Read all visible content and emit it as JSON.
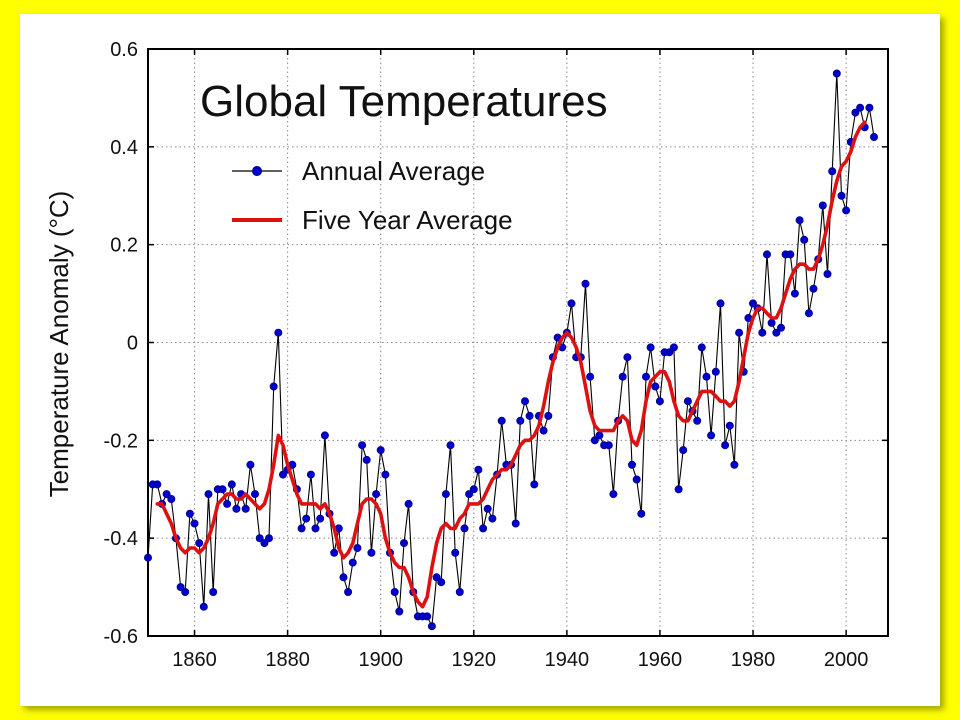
{
  "chart_data": {
    "type": "line",
    "title": "Global Temperatures",
    "xlabel": "",
    "ylabel": "Temperature Anomaly (°C)",
    "xlim": [
      1850,
      2009
    ],
    "ylim": [
      -0.6,
      0.6
    ],
    "x_ticks": [
      1860,
      1880,
      1900,
      1920,
      1940,
      1960,
      1980,
      2000
    ],
    "y_ticks": [
      "0.6",
      "0.4",
      "0.2",
      "0",
      "-0.2",
      "-0.4",
      "-0.6"
    ],
    "grid": true,
    "legend_position": "top-left",
    "series": [
      {
        "name": "Annual Average",
        "color": "#0000cc",
        "line_color": "#000000",
        "marker": "circle",
        "x": [
          1850,
          1851,
          1852,
          1853,
          1854,
          1855,
          1856,
          1857,
          1858,
          1859,
          1860,
          1861,
          1862,
          1863,
          1864,
          1865,
          1866,
          1867,
          1868,
          1869,
          1870,
          1871,
          1872,
          1873,
          1874,
          1875,
          1876,
          1877,
          1878,
          1879,
          1880,
          1881,
          1882,
          1883,
          1884,
          1885,
          1886,
          1887,
          1888,
          1889,
          1890,
          1891,
          1892,
          1893,
          1894,
          1895,
          1896,
          1897,
          1898,
          1899,
          1900,
          1901,
          1902,
          1903,
          1904,
          1905,
          1906,
          1907,
          1908,
          1909,
          1910,
          1911,
          1912,
          1913,
          1914,
          1915,
          1916,
          1917,
          1918,
          1919,
          1920,
          1921,
          1922,
          1923,
          1924,
          1925,
          1926,
          1927,
          1928,
          1929,
          1930,
          1931,
          1932,
          1933,
          1934,
          1935,
          1936,
          1937,
          1938,
          1939,
          1940,
          1941,
          1942,
          1943,
          1944,
          1945,
          1946,
          1947,
          1948,
          1949,
          1950,
          1951,
          1952,
          1953,
          1954,
          1955,
          1956,
          1957,
          1958,
          1959,
          1960,
          1961,
          1962,
          1963,
          1964,
          1965,
          1966,
          1967,
          1968,
          1969,
          1970,
          1971,
          1972,
          1973,
          1974,
          1975,
          1976,
          1977,
          1978,
          1979,
          1980,
          1981,
          1982,
          1983,
          1984,
          1985,
          1986,
          1987,
          1988,
          1989,
          1990,
          1991,
          1992,
          1993,
          1994,
          1995,
          1996,
          1997,
          1998,
          1999,
          2000,
          2001,
          2002,
          2003,
          2004,
          2005,
          2006
        ],
        "values": [
          -0.44,
          -0.29,
          -0.29,
          -0.33,
          -0.31,
          -0.32,
          -0.4,
          -0.5,
          -0.51,
          -0.35,
          -0.37,
          -0.41,
          -0.54,
          -0.31,
          -0.51,
          -0.3,
          -0.3,
          -0.33,
          -0.29,
          -0.34,
          -0.31,
          -0.34,
          -0.25,
          -0.31,
          -0.4,
          -0.41,
          -0.4,
          -0.09,
          0.02,
          -0.27,
          -0.26,
          -0.25,
          -0.3,
          -0.38,
          -0.36,
          -0.27,
          -0.38,
          -0.36,
          -0.19,
          -0.35,
          -0.43,
          -0.38,
          -0.48,
          -0.51,
          -0.45,
          -0.42,
          -0.21,
          -0.24,
          -0.43,
          -0.31,
          -0.22,
          -0.27,
          -0.43,
          -0.51,
          -0.55,
          -0.41,
          -0.33,
          -0.51,
          -0.56,
          -0.56,
          -0.56,
          -0.58,
          -0.48,
          -0.49,
          -0.31,
          -0.21,
          -0.43,
          -0.51,
          -0.38,
          -0.31,
          -0.3,
          -0.26,
          -0.38,
          -0.34,
          -0.36,
          -0.27,
          -0.16,
          -0.25,
          -0.25,
          -0.37,
          -0.16,
          -0.12,
          -0.15,
          -0.29,
          -0.15,
          -0.18,
          -0.15,
          -0.03,
          0.01,
          -0.01,
          0.02,
          0.08,
          -0.03,
          -0.03,
          0.12,
          -0.07,
          -0.2,
          -0.19,
          -0.21,
          -0.21,
          -0.31,
          -0.16,
          -0.07,
          -0.03,
          -0.25,
          -0.28,
          -0.35,
          -0.07,
          -0.01,
          -0.09,
          -0.12,
          -0.02,
          -0.02,
          -0.01,
          -0.3,
          -0.22,
          -0.12,
          -0.14,
          -0.16,
          -0.01,
          -0.07,
          -0.19,
          -0.06,
          0.08,
          -0.21,
          -0.17,
          -0.25,
          0.02,
          -0.06,
          0.05,
          0.08,
          0.07,
          0.02,
          0.18,
          0.04,
          0.02,
          0.03,
          0.18,
          0.18,
          0.1,
          0.25,
          0.21,
          0.06,
          0.11,
          0.17,
          0.28,
          0.14,
          0.35,
          0.55,
          0.3,
          0.27,
          0.41,
          0.47,
          0.48,
          0.44,
          0.48,
          0.42
        ]
      },
      {
        "name": "Five Year Average",
        "color": "#dd1111",
        "x": [
          1852,
          1853,
          1854,
          1855,
          1856,
          1857,
          1858,
          1859,
          1860,
          1861,
          1862,
          1863,
          1864,
          1865,
          1866,
          1867,
          1868,
          1869,
          1870,
          1871,
          1872,
          1873,
          1874,
          1875,
          1876,
          1877,
          1878,
          1879,
          1880,
          1881,
          1882,
          1883,
          1884,
          1885,
          1886,
          1887,
          1888,
          1889,
          1890,
          1891,
          1892,
          1893,
          1894,
          1895,
          1896,
          1897,
          1898,
          1899,
          1900,
          1901,
          1902,
          1903,
          1904,
          1905,
          1906,
          1907,
          1908,
          1909,
          1910,
          1911,
          1912,
          1913,
          1914,
          1915,
          1916,
          1917,
          1918,
          1919,
          1920,
          1921,
          1922,
          1923,
          1924,
          1925,
          1926,
          1927,
          1928,
          1929,
          1930,
          1931,
          1932,
          1933,
          1934,
          1935,
          1936,
          1937,
          1938,
          1939,
          1940,
          1941,
          1942,
          1943,
          1944,
          1945,
          1946,
          1947,
          1948,
          1949,
          1950,
          1951,
          1952,
          1953,
          1954,
          1955,
          1956,
          1957,
          1958,
          1959,
          1960,
          1961,
          1962,
          1963,
          1964,
          1965,
          1966,
          1967,
          1968,
          1969,
          1970,
          1971,
          1972,
          1973,
          1974,
          1975,
          1976,
          1977,
          1978,
          1979,
          1980,
          1981,
          1982,
          1983,
          1984,
          1985,
          1986,
          1987,
          1988,
          1989,
          1990,
          1991,
          1992,
          1993,
          1994,
          1995,
          1996,
          1997,
          1998,
          1999,
          2000,
          2001,
          2002,
          2003,
          2004
        ],
        "values": [
          -0.33,
          -0.33,
          -0.35,
          -0.37,
          -0.4,
          -0.42,
          -0.43,
          -0.42,
          -0.42,
          -0.43,
          -0.42,
          -0.4,
          -0.37,
          -0.33,
          -0.32,
          -0.31,
          -0.31,
          -0.32,
          -0.32,
          -0.31,
          -0.32,
          -0.33,
          -0.34,
          -0.33,
          -0.3,
          -0.25,
          -0.19,
          -0.21,
          -0.25,
          -0.28,
          -0.31,
          -0.33,
          -0.33,
          -0.33,
          -0.33,
          -0.34,
          -0.33,
          -0.35,
          -0.38,
          -0.42,
          -0.44,
          -0.43,
          -0.41,
          -0.37,
          -0.33,
          -0.32,
          -0.32,
          -0.33,
          -0.35,
          -0.4,
          -0.43,
          -0.45,
          -0.46,
          -0.46,
          -0.48,
          -0.51,
          -0.53,
          -0.54,
          -0.52,
          -0.46,
          -0.41,
          -0.38,
          -0.37,
          -0.38,
          -0.38,
          -0.36,
          -0.35,
          -0.33,
          -0.33,
          -0.33,
          -0.32,
          -0.3,
          -0.28,
          -0.27,
          -0.26,
          -0.26,
          -0.25,
          -0.23,
          -0.21,
          -0.2,
          -0.2,
          -0.19,
          -0.17,
          -0.13,
          -0.08,
          -0.04,
          -0.01,
          0.01,
          0.02,
          0.01,
          -0.01,
          -0.04,
          -0.09,
          -0.14,
          -0.17,
          -0.18,
          -0.18,
          -0.18,
          -0.18,
          -0.16,
          -0.15,
          -0.16,
          -0.2,
          -0.21,
          -0.18,
          -0.12,
          -0.08,
          -0.07,
          -0.06,
          -0.06,
          -0.08,
          -0.12,
          -0.15,
          -0.16,
          -0.16,
          -0.14,
          -0.12,
          -0.1,
          -0.1,
          -0.1,
          -0.11,
          -0.12,
          -0.12,
          -0.13,
          -0.12,
          -0.08,
          -0.03,
          0.02,
          0.05,
          0.07,
          0.07,
          0.06,
          0.05,
          0.05,
          0.07,
          0.1,
          0.13,
          0.15,
          0.16,
          0.16,
          0.15,
          0.15,
          0.17,
          0.2,
          0.24,
          0.29,
          0.33,
          0.36,
          0.37,
          0.39,
          0.42,
          0.44,
          0.45
        ]
      }
    ]
  }
}
